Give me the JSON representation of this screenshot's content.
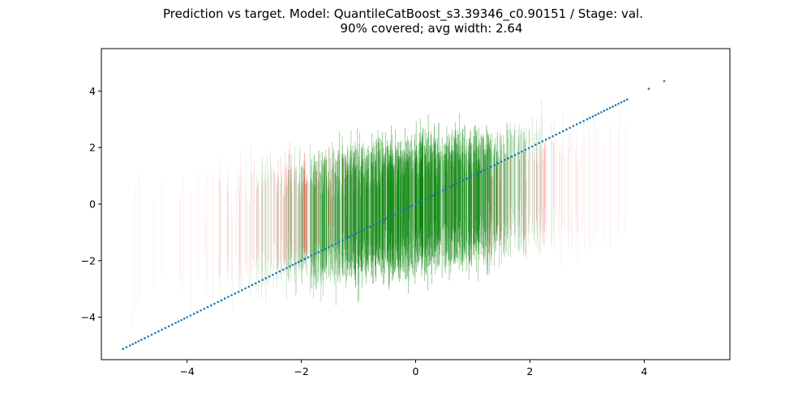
{
  "chart_data": {
    "type": "scatter",
    "title_line1": "Prediction vs target. Model: QuantileCatBoost_s3.39346_c0.90151 / Stage: val.",
    "title_line2": "90% covered; avg width: 2.64",
    "xlabel": "",
    "ylabel": "",
    "xlim": [
      -5.5,
      5.5
    ],
    "ylim": [
      -5.5,
      5.5
    ],
    "x_ticks": [
      -4,
      -2,
      0,
      2,
      4
    ],
    "y_ticks": [
      -4,
      -2,
      0,
      2,
      4
    ],
    "x_tick_labels": [
      "−4",
      "−2",
      "0",
      "2",
      "4"
    ],
    "y_tick_labels": [
      "−4",
      "−2",
      "0",
      "2",
      "4"
    ],
    "grid": false,
    "coverage": 0.9,
    "avg_interval_width": 2.64,
    "series": [
      {
        "kind": "points",
        "color": "#1f77b4",
        "points": [
          [
            -5.12,
            -5.12
          ],
          [
            -5.0,
            -5.0
          ],
          [
            -4.8,
            -4.8
          ],
          [
            -4.5,
            -4.5
          ],
          [
            -4.2,
            -4.2
          ],
          [
            -4.0,
            -4.0
          ],
          [
            -3.7,
            -3.7
          ],
          [
            -3.4,
            -3.4
          ],
          [
            -3.1,
            -3.1
          ],
          [
            -2.8,
            -2.8
          ],
          [
            -2.5,
            -2.5
          ],
          [
            -2.2,
            -2.2
          ],
          [
            -2.0,
            -2.0
          ],
          [
            -1.7,
            -1.7
          ],
          [
            -1.4,
            -1.4
          ],
          [
            -1.1,
            -1.1
          ],
          [
            -0.8,
            -0.8
          ],
          [
            -0.5,
            -0.5
          ],
          [
            -0.2,
            -0.2
          ],
          [
            0.0,
            0.0
          ],
          [
            0.3,
            0.3
          ],
          [
            0.6,
            0.6
          ],
          [
            0.9,
            0.9
          ],
          [
            1.2,
            1.2
          ],
          [
            1.5,
            1.5
          ],
          [
            1.8,
            1.8
          ],
          [
            2.1,
            2.1
          ],
          [
            2.4,
            2.4
          ],
          [
            2.7,
            2.7
          ],
          [
            3.0,
            3.0
          ],
          [
            3.2,
            3.2
          ],
          [
            3.45,
            3.45
          ],
          [
            3.6,
            3.6
          ],
          [
            3.7,
            3.7
          ],
          [
            4.08,
            4.08
          ],
          [
            4.35,
            4.35
          ]
        ]
      },
      {
        "kind": "intervals",
        "covered_color": "#008000",
        "missed_color": "#ff0000",
        "density_centers": [
          [
            -5.0,
            0.02
          ],
          [
            -4.0,
            0.05
          ],
          [
            -3.0,
            0.12
          ],
          [
            -2.5,
            0.25
          ],
          [
            -2.0,
            0.45
          ],
          [
            -1.5,
            0.7
          ],
          [
            -1.0,
            0.9
          ],
          [
            -0.5,
            0.98
          ],
          [
            0.0,
            1.0
          ],
          [
            0.5,
            0.97
          ],
          [
            1.0,
            0.88
          ],
          [
            1.5,
            0.65
          ],
          [
            2.0,
            0.3
          ],
          [
            2.5,
            0.12
          ],
          [
            3.0,
            0.05
          ],
          [
            3.7,
            0.02
          ]
        ]
      }
    ]
  }
}
